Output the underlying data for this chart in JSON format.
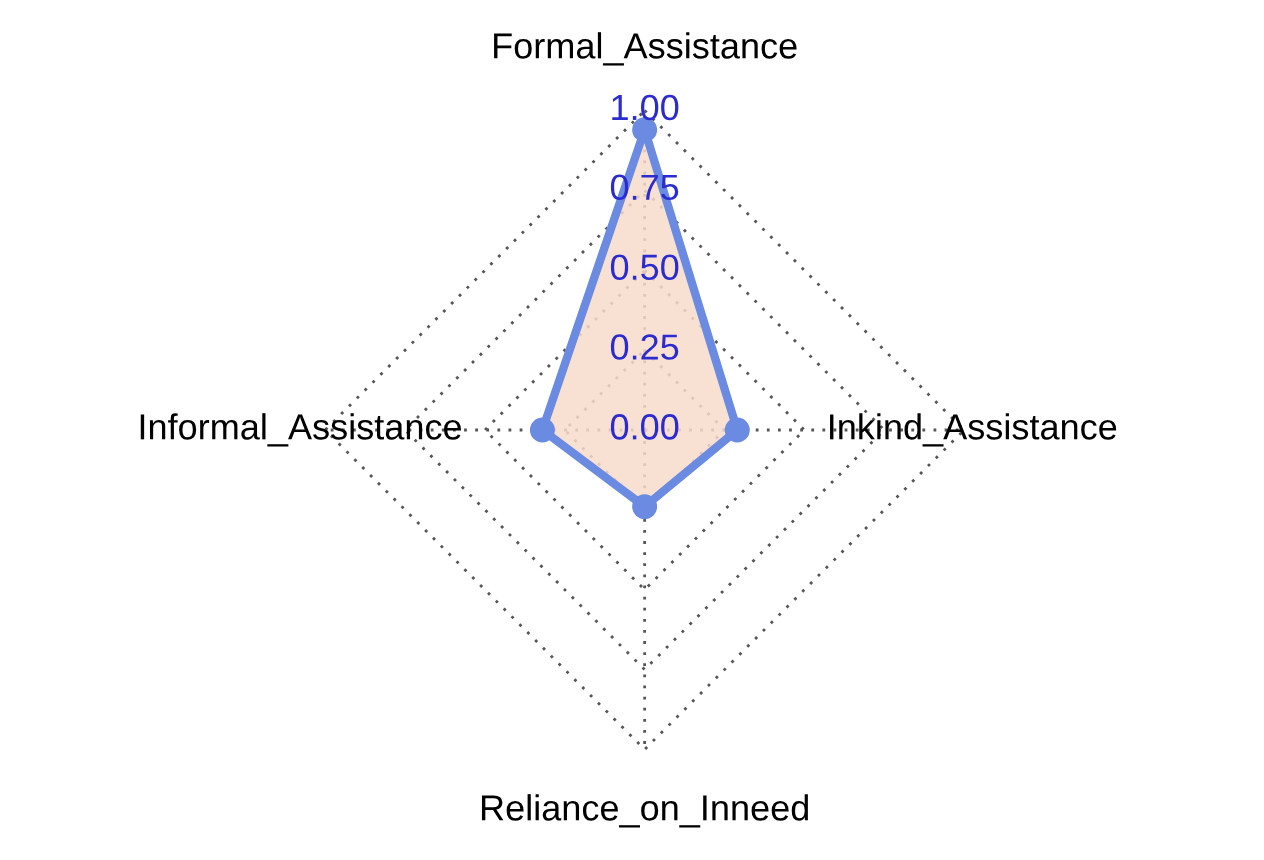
{
  "chart_data": {
    "type": "radar",
    "categories": [
      "Formal_Assistance",
      "Inkind_Assistance",
      "Reliance_on_Inneed",
      "Informal_Assistance"
    ],
    "series": [
      {
        "color": "#6b8be3",
        "values": [
          0.94,
          0.29,
          0.24,
          0.32
        ]
      }
    ],
    "ylim": [
      0,
      1
    ],
    "yticks": [
      {
        "value": 0,
        "label": "0.00"
      },
      {
        "value": 0.25,
        "label": "0.25"
      },
      {
        "value": 0.5,
        "label": "0.50"
      },
      {
        "value": 0.75,
        "label": "0.75"
      },
      {
        "value": 1,
        "label": "1.00"
      }
    ],
    "marker": "circle",
    "grid": true
  }
}
